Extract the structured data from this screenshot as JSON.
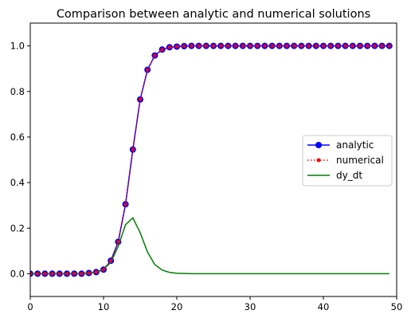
{
  "chart_data": {
    "type": "line",
    "title": "Comparison between analytic and numerical solutions",
    "xlabel": "",
    "ylabel": "",
    "xlim": [
      0,
      50
    ],
    "ylim": [
      -0.1,
      1.1
    ],
    "xticks": [
      0,
      10,
      20,
      30,
      40,
      50
    ],
    "yticks": [
      0.0,
      0.2,
      0.4,
      0.6,
      0.8,
      1.0
    ],
    "grid": false,
    "legend_position": "center-right",
    "series": [
      {
        "name": "analytic",
        "color": "#0000ff",
        "marker": "circle",
        "line_style": "solid",
        "x": [
          0,
          1,
          2,
          3,
          4,
          5,
          6,
          7,
          8,
          9,
          10,
          11,
          12,
          13,
          14,
          15,
          16,
          17,
          18,
          19,
          20,
          21,
          22,
          23,
          24,
          25,
          26,
          27,
          28,
          29,
          30,
          31,
          32,
          33,
          34,
          35,
          36,
          37,
          38,
          39,
          40,
          41,
          42,
          43,
          44,
          45,
          46,
          47,
          48,
          49
        ],
        "values": [
          0.0,
          0.0,
          0.0,
          0.0,
          0.0,
          0.0,
          0.0,
          0.0,
          0.003,
          0.007,
          0.018,
          0.057,
          0.14,
          0.305,
          0.545,
          0.765,
          0.895,
          0.958,
          0.984,
          0.994,
          0.997,
          0.999,
          1.0,
          1.0,
          1.0,
          1.0,
          1.0,
          1.0,
          1.0,
          1.0,
          1.0,
          1.0,
          1.0,
          1.0,
          1.0,
          1.0,
          1.0,
          1.0,
          1.0,
          1.0,
          1.0,
          1.0,
          1.0,
          1.0,
          1.0,
          1.0,
          1.0,
          1.0,
          1.0,
          1.0
        ]
      },
      {
        "name": "numerical",
        "color": "#ff0000",
        "marker": "dot",
        "line_style": "dotted",
        "x": [
          0,
          1,
          2,
          3,
          4,
          5,
          6,
          7,
          8,
          9,
          10,
          11,
          12,
          13,
          14,
          15,
          16,
          17,
          18,
          19,
          20,
          21,
          22,
          23,
          24,
          25,
          26,
          27,
          28,
          29,
          30,
          31,
          32,
          33,
          34,
          35,
          36,
          37,
          38,
          39,
          40,
          41,
          42,
          43,
          44,
          45,
          46,
          47,
          48,
          49
        ],
        "values": [
          0.0,
          0.0,
          0.0,
          0.0,
          0.0,
          0.0,
          0.0,
          0.0,
          0.003,
          0.007,
          0.018,
          0.057,
          0.14,
          0.305,
          0.545,
          0.765,
          0.895,
          0.958,
          0.984,
          0.994,
          0.997,
          0.999,
          1.0,
          1.0,
          1.0,
          1.0,
          1.0,
          1.0,
          1.0,
          1.0,
          1.0,
          1.0,
          1.0,
          1.0,
          1.0,
          1.0,
          1.0,
          1.0,
          1.0,
          1.0,
          1.0,
          1.0,
          1.0,
          1.0,
          1.0,
          1.0,
          1.0,
          1.0,
          1.0,
          1.0
        ]
      },
      {
        "name": "dy_dt",
        "color": "#008000",
        "marker": "none",
        "line_style": "solid",
        "x": [
          0,
          1,
          2,
          3,
          4,
          5,
          6,
          7,
          8,
          9,
          10,
          11,
          12,
          13,
          14,
          15,
          16,
          17,
          18,
          19,
          20,
          21,
          22,
          23,
          24,
          25,
          26,
          27,
          28,
          29,
          30,
          31,
          32,
          33,
          34,
          35,
          36,
          37,
          38,
          39,
          40,
          41,
          42,
          43,
          44,
          45,
          46,
          47,
          48,
          49
        ],
        "values": [
          0.0,
          0.0,
          0.0,
          0.0,
          0.0,
          0.0,
          0.0,
          0.001,
          0.003,
          0.008,
          0.02,
          0.05,
          0.12,
          0.215,
          0.245,
          0.18,
          0.095,
          0.04,
          0.016,
          0.006,
          0.002,
          0.001,
          0.0,
          0.0,
          0.0,
          0.0,
          0.0,
          0.0,
          0.0,
          0.0,
          0.0,
          0.0,
          0.0,
          0.0,
          0.0,
          0.0,
          0.0,
          0.0,
          0.0,
          0.0,
          0.0,
          0.0,
          0.0,
          0.0,
          0.0,
          0.0,
          0.0,
          0.0,
          0.0,
          0.0
        ]
      }
    ]
  }
}
